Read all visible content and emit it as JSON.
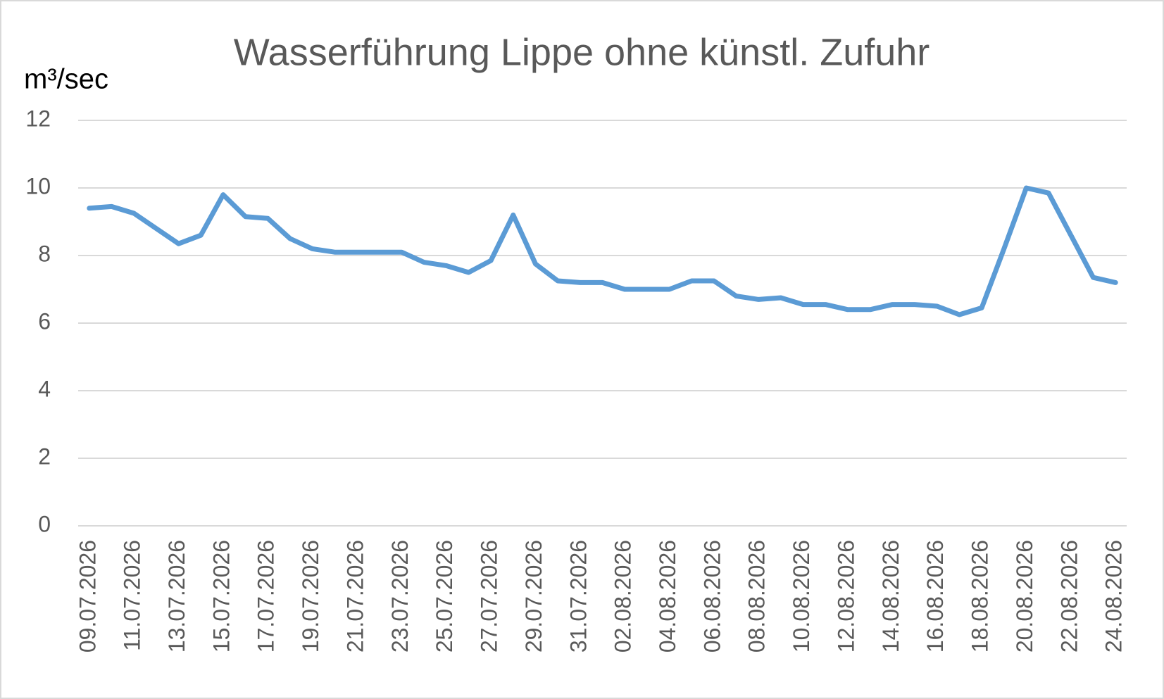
{
  "chart_data": {
    "type": "line",
    "title": "Wasserführung Lippe ohne künstl. Zufuhr",
    "y_label": "m³/sec",
    "categories": [
      "09.07.2026",
      null,
      "11.07.2026",
      null,
      "13.07.2026",
      null,
      "15.07.2026",
      null,
      "17.07.2026",
      null,
      "19.07.2026",
      null,
      "21.07.2026",
      null,
      "23.07.2026",
      null,
      "25.07.2026",
      null,
      "27.07.2026",
      null,
      "29.07.2026",
      null,
      "31.07.2026",
      null,
      "02.08.2026",
      null,
      "04.08.2026",
      null,
      "06.08.2026",
      null,
      "08.08.2026",
      null,
      "10.08.2026",
      null,
      "12.08.2026",
      null,
      "14.08.2026",
      null,
      "16.08.2026",
      null,
      "18.08.2026",
      null,
      "20.08.2026",
      null,
      "22.08.2026",
      null,
      "24.08.2026"
    ],
    "values": [
      9.4,
      9.45,
      9.25,
      8.8,
      8.35,
      8.6,
      9.8,
      9.15,
      9.1,
      8.5,
      8.2,
      8.1,
      8.1,
      8.1,
      8.1,
      7.8,
      7.7,
      7.5,
      7.85,
      9.2,
      7.75,
      7.25,
      7.2,
      7.2,
      7.0,
      7.0,
      7.0,
      7.25,
      7.25,
      6.8,
      6.7,
      6.75,
      6.55,
      6.55,
      6.4,
      6.4,
      6.55,
      6.55,
      6.5,
      6.25,
      6.45,
      8.2,
      10.0,
      9.85,
      8.6,
      7.35,
      7.2
    ],
    "color": "#5b9bd5",
    "ylim": [
      0,
      12
    ],
    "yticks": [
      0,
      2,
      4,
      6,
      8,
      10,
      12
    ],
    "grid": true
  }
}
